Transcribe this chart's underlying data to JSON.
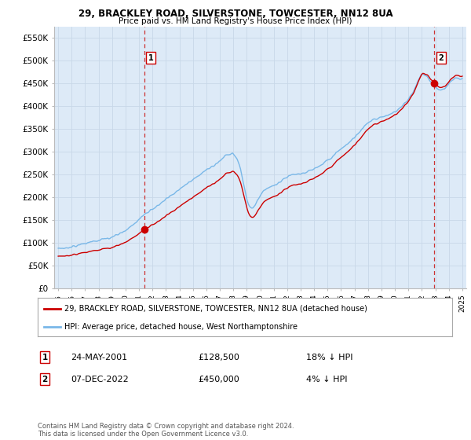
{
  "title1": "29, BRACKLEY ROAD, SILVERSTONE, TOWCESTER, NN12 8UA",
  "title2": "Price paid vs. HM Land Registry's House Price Index (HPI)",
  "bg_color": "#ddeaf7",
  "hpi_color": "#7ab8e8",
  "price_color": "#cc0000",
  "marker_color": "#cc0000",
  "dashed_line_color": "#cc3333",
  "grid_color": "#c8d8e8",
  "ylim": [
    0,
    575000
  ],
  "yticks": [
    0,
    50000,
    100000,
    150000,
    200000,
    250000,
    300000,
    350000,
    400000,
    450000,
    500000,
    550000
  ],
  "ytick_labels": [
    "£0",
    "£50K",
    "£100K",
    "£150K",
    "£200K",
    "£250K",
    "£300K",
    "£350K",
    "£400K",
    "£450K",
    "£500K",
    "£550K"
  ],
  "sale1_date": 2001.38,
  "sale1_price": 128500,
  "sale2_date": 2022.92,
  "sale2_price": 450000,
  "legend_line1": "29, BRACKLEY ROAD, SILVERSTONE, TOWCESTER, NN12 8UA (detached house)",
  "legend_line2": "HPI: Average price, detached house, West Northamptonshire",
  "annotation1_date": "24-MAY-2001",
  "annotation1_price": "£128,500",
  "annotation1_hpi": "18% ↓ HPI",
  "annotation2_date": "07-DEC-2022",
  "annotation2_price": "£450,000",
  "annotation2_hpi": "4% ↓ HPI",
  "footer": "Contains HM Land Registry data © Crown copyright and database right 2024.\nThis data is licensed under the Open Government Licence v3.0."
}
